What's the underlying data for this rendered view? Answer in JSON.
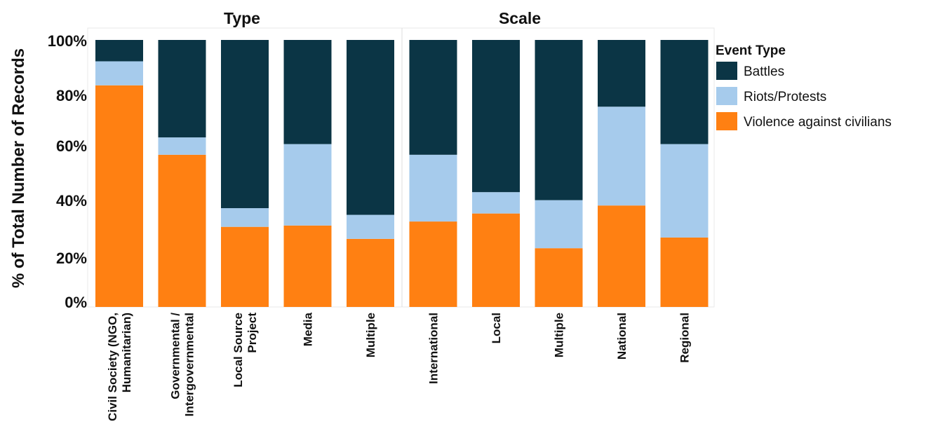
{
  "chart_data": {
    "type": "bar",
    "stacked": true,
    "normalized_percent": true,
    "ylabel": "% of Total Number of Records",
    "xlabel": "",
    "ylim": [
      0,
      100
    ],
    "yticks": [
      "0%",
      "20%",
      "40%",
      "60%",
      "80%",
      "100%"
    ],
    "panels": [
      {
        "title": "Type",
        "categories": [
          "Civil Society (NGO, Humanitarian)",
          "Governmental / Intergovernmental",
          "Local Source Project",
          "Media",
          "Multiple"
        ]
      },
      {
        "title": "Scale",
        "categories": [
          "International",
          "Local",
          "Multiple",
          "National",
          "Regional"
        ]
      }
    ],
    "category_labels": [
      [
        "Civil Society (NGO,",
        "Humanitarian)"
      ],
      [
        "Governmental /",
        "Intergovernmental"
      ],
      [
        "Local Source",
        "Project"
      ],
      [
        "Media"
      ],
      [
        "Multiple"
      ],
      [
        "International"
      ],
      [
        "Local"
      ],
      [
        "Multiple"
      ],
      [
        "National"
      ],
      [
        "Regional"
      ]
    ],
    "legend": {
      "title": "Event Type",
      "position": "right"
    },
    "series": [
      {
        "name": "Violence against civilians",
        "color": "#ff8012",
        "values": [
          83,
          57,
          30,
          30.5,
          25.5,
          32,
          35,
          22,
          38,
          26
        ]
      },
      {
        "name": "Riots/Protests",
        "color": "#a6cbec",
        "values": [
          9,
          6.5,
          7,
          30.5,
          9,
          25,
          8,
          18,
          37,
          35
        ]
      },
      {
        "name": "Battles",
        "color": "#0b3545",
        "values": [
          8,
          36.5,
          63,
          39,
          65.5,
          43,
          57,
          60,
          25,
          39
        ]
      }
    ]
  }
}
